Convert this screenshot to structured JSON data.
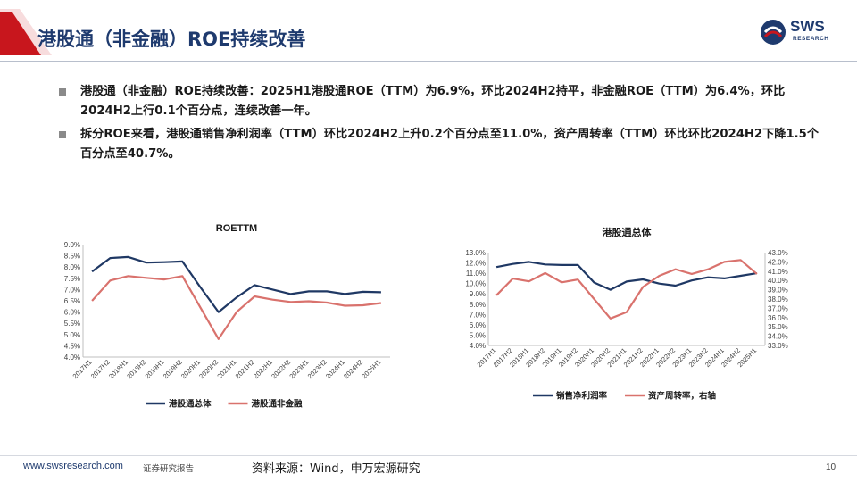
{
  "header": {
    "title": "港股通（非金融）ROE持续改善",
    "logo_text": "SWS",
    "logo_sub": "RESEARCH",
    "accent_color": "#c8161d",
    "brand_color": "#1e3a6e"
  },
  "bullets": [
    "港股通（非金融）ROE持续改善：2025H1港股通ROE（TTM）为6.9%，环比2024H2持平，非金融ROE（TTM）为6.4%，环比2024H2上行0.1个百分点，连续改善一年。",
    "拆分ROE来看，港股通销售净利润率（TTM）环比2024H2上升0.2个百分点至11.0%，资产周转率（TTM）环比环比2024H2下降1.5个百分点至40.7%。"
  ],
  "chart_data": [
    {
      "type": "line",
      "title": "ROETTM",
      "categories": [
        "2017H1",
        "2017H2",
        "2018H1",
        "2018H2",
        "2019H1",
        "2019H2",
        "2020H1",
        "2020H2",
        "2021H1",
        "2021H2",
        "2022H1",
        "2022H2",
        "2023H1",
        "2023H2",
        "2024H1",
        "2024H2",
        "2025H1"
      ],
      "ylim": [
        4.0,
        9.0
      ],
      "yticks": [
        "4.0%",
        "4.5%",
        "5.0%",
        "5.5%",
        "6.0%",
        "6.5%",
        "7.0%",
        "7.5%",
        "8.0%",
        "8.5%",
        "9.0%"
      ],
      "series": [
        {
          "name": "港股通总体",
          "color": "#1f3864",
          "values": [
            7.8,
            8.4,
            8.45,
            8.2,
            8.22,
            8.25,
            7.1,
            6.0,
            6.65,
            7.2,
            7.0,
            6.8,
            6.92,
            6.92,
            6.8,
            6.9,
            6.88
          ]
        },
        {
          "name": "港股通非金融",
          "color": "#d9726d",
          "values": [
            6.5,
            7.4,
            7.6,
            7.52,
            7.45,
            7.6,
            6.2,
            4.8,
            6.0,
            6.7,
            6.55,
            6.45,
            6.48,
            6.42,
            6.28,
            6.3,
            6.4
          ]
        }
      ]
    },
    {
      "type": "line",
      "title": "港股通总体",
      "categories": [
        "2017H1",
        "2017H2",
        "2018H1",
        "2018H2",
        "2019H1",
        "2019H2",
        "2020H1",
        "2020H2",
        "2021H1",
        "2021H2",
        "2022H1",
        "2022H2",
        "2023H1",
        "2023H2",
        "2024H1",
        "2024H2",
        "2025H1"
      ],
      "ylim_left": [
        4.0,
        13.0
      ],
      "yticks_left": [
        "4.0%",
        "5.0%",
        "6.0%",
        "7.0%",
        "8.0%",
        "9.0%",
        "10.0%",
        "11.0%",
        "12.0%",
        "13.0%"
      ],
      "ylim_right": [
        33.0,
        43.0
      ],
      "yticks_right": [
        "33.0%",
        "34.0%",
        "35.0%",
        "36.0%",
        "37.0%",
        "38.0%",
        "39.0%",
        "40.0%",
        "41.0%",
        "42.0%",
        "43.0%"
      ],
      "series": [
        {
          "name": "销售净利润率",
          "axis": "left",
          "color": "#1f3864",
          "values": [
            11.6,
            11.9,
            12.1,
            11.85,
            11.8,
            11.8,
            10.1,
            9.4,
            10.2,
            10.4,
            10.0,
            9.8,
            10.3,
            10.6,
            10.5,
            10.75,
            11.0
          ]
        },
        {
          "name": "资产周转率，右轴",
          "axis": "right",
          "color": "#d9726d",
          "values": [
            38.4,
            40.2,
            39.9,
            40.8,
            39.8,
            40.1,
            38.0,
            35.9,
            36.6,
            39.3,
            40.5,
            41.2,
            40.7,
            41.2,
            42.0,
            42.2,
            40.7
          ]
        }
      ]
    }
  ],
  "footer": {
    "url": "www.swsresearch.com",
    "tag": "证券研究报告",
    "source": "资料来源：Wind，申万宏源研究",
    "page": "10"
  }
}
